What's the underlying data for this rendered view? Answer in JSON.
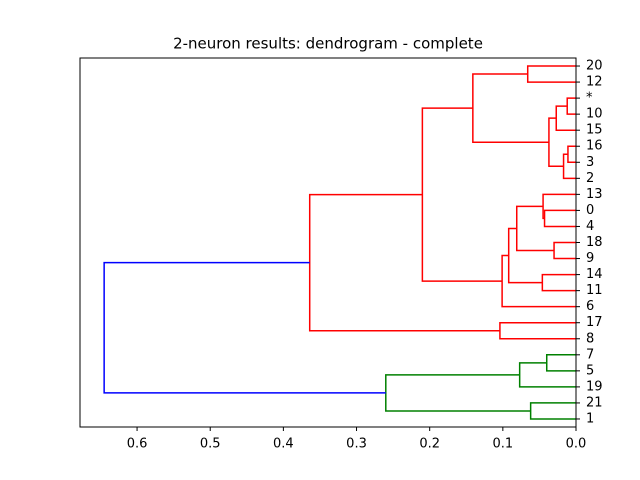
{
  "chart_data": {
    "type": "dendrogram",
    "title": "2-neuron results: dendrogram - complete",
    "orientation": "left",
    "xlim": [
      0.678,
      0
    ],
    "xticks": [
      0.6,
      0.5,
      0.4,
      0.3,
      0.2,
      0.1,
      {
        "value": 0,
        "label": "0.0"
      }
    ],
    "tree": {
      "height": 0.645,
      "color": "#0000ff",
      "children": [
        {
          "height": 0.364,
          "color": "#ff0000",
          "children": [
            {
              "height": 0.21,
              "children": [
                {
                  "height": 0.141,
                  "children": [
                    {
                      "height": 0.066,
                      "children": [
                        {
                          "label": "20"
                        },
                        {
                          "label": "12"
                        }
                      ]
                    },
                    {
                      "height": 0.037,
                      "children": [
                        {
                          "height": 0.027,
                          "children": [
                            {
                              "height": 0.012,
                              "children": [
                                {
                                  "label": "*"
                                },
                                {
                                  "label": "10"
                                }
                              ]
                            },
                            {
                              "label": "15"
                            }
                          ]
                        },
                        {
                          "height": 0.017,
                          "children": [
                            {
                              "height": 0.011,
                              "children": [
                                {
                                  "label": "16"
                                },
                                {
                                  "label": "3"
                                }
                              ]
                            },
                            {
                              "label": "2"
                            }
                          ]
                        }
                      ]
                    }
                  ]
                },
                {
                  "height": 0.101,
                  "children": [
                    {
                      "height": 0.092,
                      "children": [
                        {
                          "height": 0.081,
                          "children": [
                            {
                              "height": 0.045,
                              "children": [
                                {
                                  "label": "13"
                                },
                                {
                                  "height": 0.043,
                                  "children": [
                                    {
                                      "label": "0"
                                    },
                                    {
                                      "label": "4"
                                    }
                                  ]
                                }
                              ]
                            },
                            {
                              "height": 0.03,
                              "children": [
                                {
                                  "label": "18"
                                },
                                {
                                  "label": "9"
                                }
                              ]
                            }
                          ]
                        },
                        {
                          "height": 0.046,
                          "children": [
                            {
                              "label": "14"
                            },
                            {
                              "label": "11"
                            }
                          ]
                        }
                      ]
                    },
                    {
                      "label": "6"
                    }
                  ]
                }
              ]
            },
            {
              "height": 0.104,
              "children": [
                {
                  "label": "17"
                },
                {
                  "label": "8"
                }
              ]
            }
          ]
        },
        {
          "height": 0.26,
          "color": "#008000",
          "children": [
            {
              "height": 0.077,
              "children": [
                {
                  "height": 0.04,
                  "children": [
                    {
                      "label": "7"
                    },
                    {
                      "label": "5"
                    }
                  ]
                },
                {
                  "label": "19"
                }
              ]
            },
            {
              "height": 0.062,
              "children": [
                {
                  "label": "21"
                },
                {
                  "label": "1"
                }
              ]
            }
          ]
        }
      ]
    }
  }
}
